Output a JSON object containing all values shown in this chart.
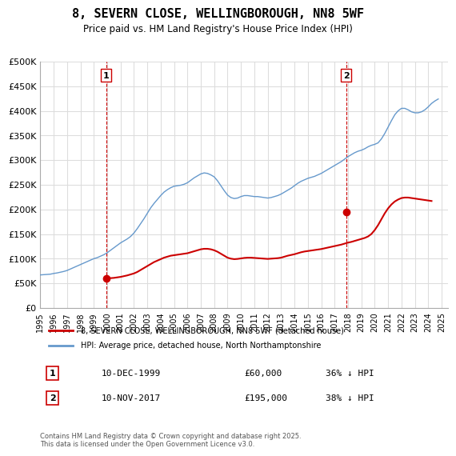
{
  "title": "8, SEVERN CLOSE, WELLINGBOROUGH, NN8 5WF",
  "subtitle": "Price paid vs. HM Land Registry's House Price Index (HPI)",
  "hpi_color": "#6699cc",
  "price_color": "#cc0000",
  "background_color": "#ffffff",
  "grid_color": "#dddddd",
  "ylim": [
    0,
    500000
  ],
  "yticks": [
    0,
    50000,
    100000,
    150000,
    200000,
    250000,
    300000,
    350000,
    400000,
    450000,
    500000
  ],
  "ytick_labels": [
    "£0",
    "£50K",
    "£100K",
    "£150K",
    "£200K",
    "£250K",
    "£300K",
    "£350K",
    "£400K",
    "£450K",
    "£500K"
  ],
  "xlim_start": 1995.0,
  "xlim_end": 2025.5,
  "xticks": [
    1995,
    1996,
    1997,
    1998,
    1999,
    2000,
    2001,
    2002,
    2003,
    2004,
    2005,
    2006,
    2007,
    2008,
    2009,
    2010,
    2011,
    2012,
    2013,
    2014,
    2015,
    2016,
    2017,
    2018,
    2019,
    2020,
    2021,
    2022,
    2023,
    2024,
    2025
  ],
  "sale1_year": 1999.92,
  "sale1_price": 60000,
  "sale1_label": "1",
  "sale1_vline_color": "#cc0000",
  "sale2_year": 2017.87,
  "sale2_price": 195000,
  "sale2_label": "2",
  "sale2_vline_color": "#cc0000",
  "legend_label_red": "8, SEVERN CLOSE, WELLINGBOROUGH, NN8 5WF (detached house)",
  "legend_label_blue": "HPI: Average price, detached house, North Northamptonshire",
  "annotation1_date": "10-DEC-1999",
  "annotation1_price": "£60,000",
  "annotation1_hpi": "36% ↓ HPI",
  "annotation2_date": "10-NOV-2017",
  "annotation2_price": "£195,000",
  "annotation2_hpi": "38% ↓ HPI",
  "footer": "Contains HM Land Registry data © Crown copyright and database right 2025.\nThis data is licensed under the Open Government Licence v3.0.",
  "hpi_data_x": [
    1995.0,
    1995.25,
    1995.5,
    1995.75,
    1996.0,
    1996.25,
    1996.5,
    1996.75,
    1997.0,
    1997.25,
    1997.5,
    1997.75,
    1998.0,
    1998.25,
    1998.5,
    1998.75,
    1999.0,
    1999.25,
    1999.5,
    1999.75,
    2000.0,
    2000.25,
    2000.5,
    2000.75,
    2001.0,
    2001.25,
    2001.5,
    2001.75,
    2002.0,
    2002.25,
    2002.5,
    2002.75,
    2003.0,
    2003.25,
    2003.5,
    2003.75,
    2004.0,
    2004.25,
    2004.5,
    2004.75,
    2005.0,
    2005.25,
    2005.5,
    2005.75,
    2006.0,
    2006.25,
    2006.5,
    2006.75,
    2007.0,
    2007.25,
    2007.5,
    2007.75,
    2008.0,
    2008.25,
    2008.5,
    2008.75,
    2009.0,
    2009.25,
    2009.5,
    2009.75,
    2010.0,
    2010.25,
    2010.5,
    2010.75,
    2011.0,
    2011.25,
    2011.5,
    2011.75,
    2012.0,
    2012.25,
    2012.5,
    2012.75,
    2013.0,
    2013.25,
    2013.5,
    2013.75,
    2014.0,
    2014.25,
    2014.5,
    2014.75,
    2015.0,
    2015.25,
    2015.5,
    2015.75,
    2016.0,
    2016.25,
    2016.5,
    2016.75,
    2017.0,
    2017.25,
    2017.5,
    2017.75,
    2018.0,
    2018.25,
    2018.5,
    2018.75,
    2019.0,
    2019.25,
    2019.5,
    2019.75,
    2020.0,
    2020.25,
    2020.5,
    2020.75,
    2021.0,
    2021.25,
    2021.5,
    2021.75,
    2022.0,
    2022.25,
    2022.5,
    2022.75,
    2023.0,
    2023.25,
    2023.5,
    2023.75,
    2024.0,
    2024.25,
    2024.5,
    2024.75
  ],
  "hpi_data_y": [
    67000,
    67500,
    68000,
    68500,
    70000,
    71000,
    72500,
    74000,
    76000,
    79000,
    82000,
    85000,
    88000,
    91000,
    94000,
    97000,
    100000,
    102000,
    105000,
    108000,
    112000,
    117000,
    122000,
    127000,
    132000,
    136000,
    140000,
    145000,
    152000,
    161000,
    171000,
    181000,
    192000,
    203000,
    212000,
    220000,
    228000,
    235000,
    240000,
    244000,
    247000,
    248000,
    249000,
    251000,
    254000,
    259000,
    264000,
    268000,
    272000,
    274000,
    273000,
    270000,
    266000,
    258000,
    248000,
    238000,
    229000,
    224000,
    222000,
    223000,
    226000,
    228000,
    228000,
    227000,
    226000,
    226000,
    225000,
    224000,
    223000,
    224000,
    226000,
    228000,
    231000,
    235000,
    239000,
    243000,
    248000,
    253000,
    257000,
    260000,
    263000,
    265000,
    267000,
    270000,
    273000,
    277000,
    281000,
    285000,
    289000,
    293000,
    297000,
    302000,
    307000,
    311000,
    315000,
    318000,
    320000,
    323000,
    327000,
    330000,
    332000,
    335000,
    343000,
    354000,
    367000,
    380000,
    392000,
    400000,
    405000,
    405000,
    402000,
    398000,
    396000,
    396000,
    398000,
    402000,
    408000,
    415000,
    420000,
    424000
  ],
  "price_data_x": [
    1999.92,
    2017.87
  ],
  "price_data_y": [
    60000,
    195000
  ],
  "price_line_x": [
    1995.0,
    1995.25,
    1995.5,
    1995.75,
    1996.0,
    1996.25,
    1996.5,
    1996.75,
    1997.0,
    1997.25,
    1997.5,
    1997.75,
    1998.0,
    1998.25,
    1998.5,
    1998.75,
    1999.0,
    1999.25,
    1999.5,
    1999.75,
    2000.0,
    2000.25,
    2000.5,
    2000.75,
    2001.0,
    2001.25,
    2001.5,
    2001.75,
    2002.0,
    2002.25,
    2002.5,
    2002.75,
    2003.0,
    2003.25,
    2003.5,
    2003.75,
    2004.0,
    2004.25,
    2004.5,
    2004.75,
    2005.0,
    2005.25,
    2005.5,
    2005.75,
    2006.0,
    2006.25,
    2006.5,
    2006.75,
    2007.0,
    2007.25,
    2007.5,
    2007.75,
    2008.0,
    2008.25,
    2008.5,
    2008.75,
    2009.0,
    2009.25,
    2009.5,
    2009.75,
    2010.0,
    2010.25,
    2010.5,
    2010.75,
    2011.0,
    2011.25,
    2011.5,
    2011.75,
    2012.0,
    2012.25,
    2012.5,
    2012.75,
    2013.0,
    2013.25,
    2013.5,
    2013.75,
    2014.0,
    2014.25,
    2014.5,
    2014.75,
    2015.0,
    2015.25,
    2015.5,
    2015.75,
    2016.0,
    2016.25,
    2016.5,
    2016.75,
    2017.0,
    2017.25,
    2017.5,
    2017.75,
    2018.0,
    2018.25,
    2018.5,
    2018.75,
    2019.0,
    2019.25,
    2019.5,
    2019.75,
    2020.0,
    2020.25,
    2020.5,
    2020.75,
    2021.0,
    2021.25,
    2021.5,
    2021.75,
    2022.0,
    2022.25,
    2022.5,
    2022.75,
    2023.0,
    2023.25,
    2023.5,
    2023.75,
    2024.0,
    2024.25,
    2024.5,
    2024.75
  ],
  "price_line_y": [
    null,
    null,
    null,
    null,
    null,
    null,
    null,
    null,
    null,
    null,
    null,
    null,
    null,
    null,
    null,
    null,
    null,
    null,
    null,
    null,
    60000,
    60500,
    61000,
    62000,
    63000,
    64500,
    66000,
    68000,
    70000,
    73000,
    77000,
    81000,
    85000,
    89000,
    93000,
    96000,
    99000,
    102000,
    104000,
    106000,
    107000,
    108000,
    109000,
    110000,
    111000,
    113000,
    115000,
    117000,
    119000,
    120000,
    120000,
    119000,
    117000,
    114000,
    110000,
    106000,
    102000,
    100000,
    99000,
    99500,
    100500,
    101500,
    102000,
    102000,
    101500,
    101000,
    100500,
    100000,
    99500,
    100000,
    100500,
    101000,
    102000,
    104000,
    106000,
    107500,
    109000,
    111000,
    113000,
    114500,
    115500,
    116500,
    117500,
    118500,
    119500,
    121000,
    122500,
    124000,
    125500,
    127000,
    128500,
    130500,
    132500,
    134000,
    136000,
    138000,
    140000,
    142000,
    145000,
    150000,
    158000,
    168000,
    180000,
    192000,
    202000,
    210000,
    216000,
    220000,
    223000,
    224000,
    224000,
    223000,
    222000,
    221000,
    220000,
    219000,
    218000,
    217000,
    null,
    null,
    null,
    null
  ]
}
